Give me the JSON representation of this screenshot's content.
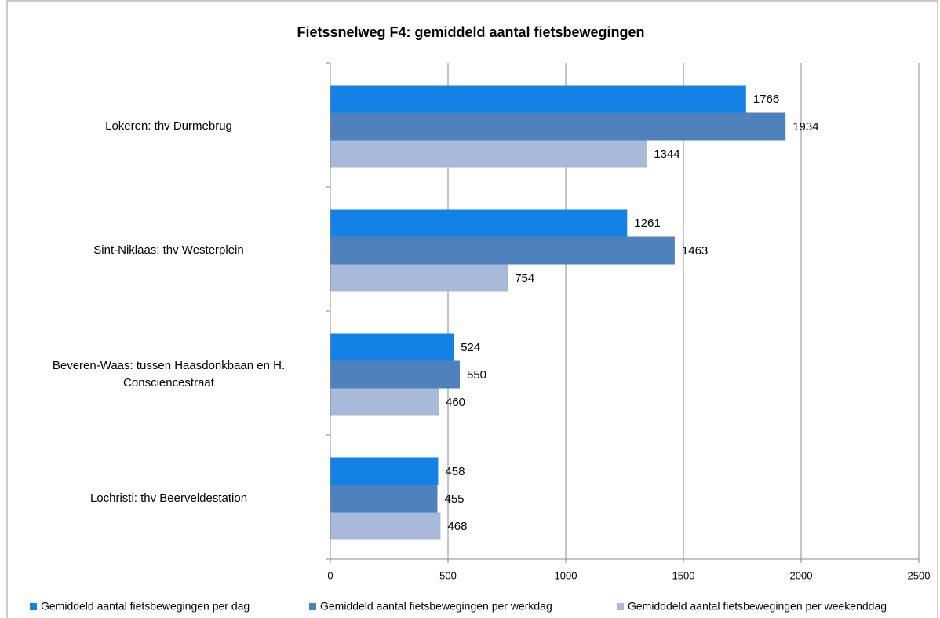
{
  "chart_data": {
    "type": "hbar",
    "title": "Fietssnelweg F4: gemiddeld aantal fietsbewegingen",
    "categories": [
      "Lokeren: thv Durmebrug",
      "Sint-Niklaas: thv Westerplein",
      "Beveren-Waas: tussen Haasdonkbaan en H. Consciencestraat",
      "Lochristi: thv Beerveldestation"
    ],
    "series": [
      {
        "name": "Gemiddeld aantal fietsbewegingen per dag",
        "color": "#1381e6",
        "values": [
          1766,
          1261,
          524,
          458
        ]
      },
      {
        "name": "Gemiddeld aantal fietsbewegingen per werkdag",
        "color": "#4f81bd",
        "values": [
          1934,
          1463,
          550,
          455
        ]
      },
      {
        "name": "Gemidddeld aantal fietsbewegingen per weekenddag",
        "color": "#a9b9d9",
        "values": [
          1344,
          754,
          460,
          468
        ]
      }
    ],
    "xlim": [
      0,
      2500
    ],
    "xticks": [
      0,
      500,
      1000,
      1500,
      2000,
      2500
    ],
    "grid": true,
    "legend": "bottom"
  }
}
